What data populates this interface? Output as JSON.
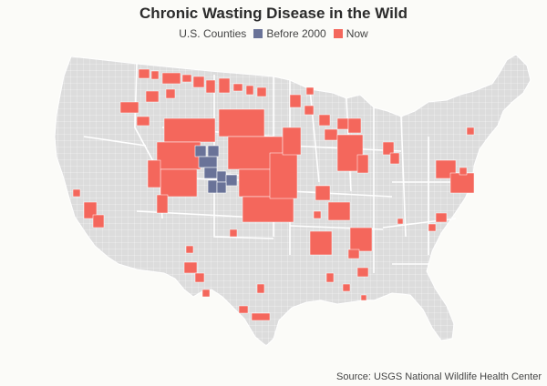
{
  "title": "Chronic Wasting Disease in the Wild",
  "legend": {
    "items": [
      {
        "label": "U.S. Counties",
        "color": "#dcdcdc"
      },
      {
        "label": "Before 2000",
        "color": "#6a7398"
      },
      {
        "label": "Now",
        "color": "#f4675c"
      }
    ]
  },
  "colors": {
    "base": "#dcdcdc",
    "before2000": "#6a7398",
    "now": "#f4675c",
    "border": "#ffffff"
  },
  "source": "Source: USGS National Wildlife Health Center"
}
